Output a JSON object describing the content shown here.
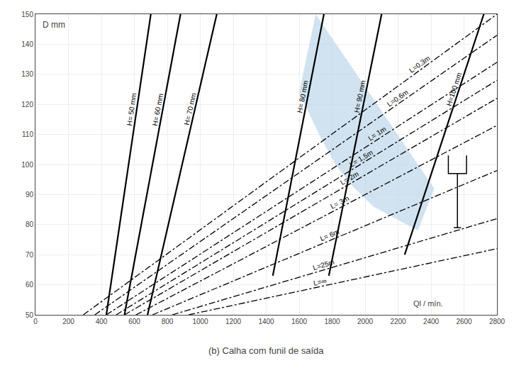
{
  "chart_data": {
    "type": "line",
    "title": "(b) Calha com funil de saída",
    "ylabel": "D mm",
    "xlabel": "Ql / mín.",
    "xlim": [
      0,
      2800
    ],
    "ylim": [
      50,
      150
    ],
    "xticks": [
      0,
      200,
      400,
      600,
      800,
      1000,
      1200,
      1400,
      1600,
      1800,
      2000,
      2200,
      2400,
      2600,
      2800
    ],
    "yticks": [
      50,
      60,
      70,
      80,
      90,
      100,
      110,
      120,
      130,
      140,
      150
    ],
    "grid": true,
    "series": [
      {
        "type": "area",
        "color": "#b8d4e8",
        "x": [
          1600,
          1700,
          2420,
          2320,
          2050,
          1920,
          1820,
          1720
        ],
        "values": [
          124,
          150,
          92,
          78,
          86,
          93,
          100,
          110
        ]
      },
      {
        "name": "H= 50 mm",
        "color": "#000000",
        "line_style": "solid",
        "x": [
          430,
          700
        ],
        "values": [
          50,
          150
        ]
      },
      {
        "name": "H= 60 mm",
        "color": "#000000",
        "line_style": "solid",
        "x": [
          540,
          880
        ],
        "values": [
          50,
          150
        ]
      },
      {
        "name": "H= 70 mm",
        "color": "#000000",
        "line_style": "solid",
        "x": [
          680,
          1100
        ],
        "values": [
          50,
          150
        ]
      },
      {
        "name": "H= 80 mm",
        "color": "#000000",
        "line_style": "solid",
        "x": [
          1440,
          1750
        ],
        "values": [
          63,
          150
        ]
      },
      {
        "name": "H= 90 mm",
        "color": "#000000",
        "line_style": "solid",
        "x": [
          1780,
          2100
        ],
        "values": [
          63,
          150
        ]
      },
      {
        "name": "H=100 mm",
        "color": "#000000",
        "line_style": "solid",
        "x": [
          2240,
          2720
        ],
        "values": [
          70,
          150
        ]
      },
      {
        "name": "L=0,3m",
        "color": "#000000",
        "line_style": "dashdot",
        "x": [
          290,
          2800
        ],
        "values": [
          50,
          150
        ]
      },
      {
        "name": "L=0,6m",
        "color": "#000000",
        "line_style": "dashdot",
        "x": [
          360,
          2800
        ],
        "values": [
          50,
          143
        ]
      },
      {
        "name": "L= 1m",
        "color": "#000000",
        "line_style": "dashdot",
        "x": [
          430,
          2800
        ],
        "values": [
          50,
          134
        ]
      },
      {
        "name": "L= 1,5m",
        "color": "#000000",
        "line_style": "dashdot",
        "x": [
          490,
          2800
        ],
        "values": [
          50,
          128
        ]
      },
      {
        "name": "L= 2m",
        "color": "#000000",
        "line_style": "dashdot",
        "x": [
          540,
          2800
        ],
        "values": [
          50,
          122
        ]
      },
      {
        "name": "L= 3m",
        "color": "#000000",
        "line_style": "dashdot",
        "x": [
          610,
          2800
        ],
        "values": [
          50,
          113
        ]
      },
      {
        "name": "L= 6m",
        "color": "#000000",
        "line_style": "dashdot",
        "x": [
          710,
          2800
        ],
        "values": [
          50,
          98
        ]
      },
      {
        "name": "L=25m",
        "color": "#000000",
        "line_style": "dashdot",
        "x": [
          830,
          2800
        ],
        "values": [
          50,
          82
        ]
      },
      {
        "name": "L=∞",
        "color": "#000000",
        "line_style": "dashdot",
        "x": [
          930,
          2800
        ],
        "values": [
          50,
          72
        ]
      },
      {
        "color": "#000000",
        "line_style": "solid",
        "x": [
          2505,
          2505,
          2615,
          2615,
          null,
          2560,
          2560,
          null,
          2538,
          2582
        ],
        "values": [
          103,
          97,
          97,
          103,
          null,
          97,
          79,
          null,
          79,
          79
        ]
      }
    ]
  }
}
